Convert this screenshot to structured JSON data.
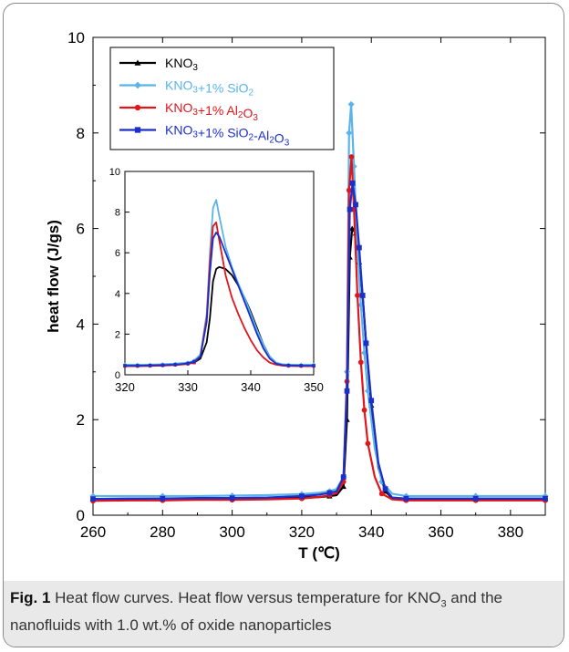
{
  "caption": {
    "label": "Fig. 1",
    "title": "Heat flow curves.",
    "text_part1": "Heat flow versus temperature for KNO",
    "text_sub": "3",
    "text_part2": "and the nanofluids with 1.0 wt.% of oxide nanoparticles"
  },
  "chart_data": {
    "type": "line",
    "xlabel": "T (℃)",
    "ylabel": "heat flow (J/gs)",
    "xlim": [
      260,
      390
    ],
    "ylim": [
      0,
      10
    ],
    "xticks": [
      260,
      280,
      300,
      320,
      340,
      360,
      380
    ],
    "yticks": [
      0,
      2,
      4,
      6,
      8,
      10
    ],
    "grid": false,
    "legend_position": "top-left",
    "series": [
      {
        "name": "KNO3",
        "legend_base": "KNO",
        "legend_sub": "3",
        "legend_rest": "",
        "color": "#000000",
        "marker": "triangle",
        "x": [
          260,
          270,
          280,
          290,
          300,
          310,
          320,
          325,
          328,
          330,
          332,
          333,
          333.8,
          334.5,
          335.5,
          336.5,
          337.5,
          338.5,
          340,
          342,
          344,
          346,
          350,
          360,
          370,
          380,
          390
        ],
        "y": [
          0.34,
          0.34,
          0.35,
          0.35,
          0.35,
          0.36,
          0.37,
          0.38,
          0.4,
          0.42,
          0.6,
          2.0,
          5.4,
          6.0,
          5.9,
          5.3,
          4.6,
          3.6,
          2.3,
          1.0,
          0.5,
          0.36,
          0.34,
          0.34,
          0.34,
          0.34,
          0.34
        ]
      },
      {
        "name": "KNO3+1% SiO2",
        "legend_base": "KNO",
        "legend_sub": "3",
        "legend_rest": "+1% SiO",
        "legend_sub2": "2",
        "legend_rest2": "",
        "color": "#5ab4ea",
        "marker": "diamond",
        "x": [
          260,
          270,
          280,
          290,
          300,
          310,
          320,
          325,
          328,
          330,
          332,
          333,
          333.6,
          334.2,
          335,
          336,
          337,
          338,
          339,
          341,
          343,
          346,
          350,
          360,
          370,
          380,
          390
        ],
        "y": [
          0.4,
          0.4,
          0.4,
          0.4,
          0.41,
          0.42,
          0.44,
          0.47,
          0.5,
          0.55,
          0.8,
          3.0,
          8.0,
          8.6,
          7.3,
          5.6,
          4.4,
          3.4,
          2.6,
          1.4,
          0.7,
          0.45,
          0.4,
          0.4,
          0.4,
          0.4,
          0.4
        ]
      },
      {
        "name": "KNO3+1% Al2O3",
        "legend_base": "KNO",
        "legend_sub": "3",
        "legend_rest": "+1% Al",
        "legend_sub2": "2",
        "legend_rest2": "O",
        "legend_sub3": "3",
        "color": "#e0161b",
        "marker": "circle",
        "x": [
          260,
          270,
          280,
          290,
          300,
          310,
          320,
          325,
          328,
          330,
          332,
          333,
          333.6,
          334.3,
          335,
          336,
          337,
          338,
          339,
          341,
          343,
          346,
          350,
          360,
          370,
          380,
          390
        ],
        "y": [
          0.3,
          0.31,
          0.31,
          0.32,
          0.32,
          0.33,
          0.35,
          0.38,
          0.42,
          0.46,
          0.7,
          2.8,
          6.8,
          7.5,
          6.4,
          4.6,
          3.2,
          2.2,
          1.5,
          0.8,
          0.45,
          0.33,
          0.31,
          0.31,
          0.31,
          0.31,
          0.31
        ]
      },
      {
        "name": "KNO3+1% SiO2-Al2O3",
        "legend_base": "KNO",
        "legend_sub": "3",
        "legend_rest": "+1% SiO",
        "legend_sub2": "2",
        "legend_rest2": "-Al",
        "legend_sub3": "2",
        "legend_rest3": "O",
        "legend_sub4": "3",
        "color": "#1c2fc8",
        "marker": "square",
        "x": [
          260,
          270,
          280,
          290,
          300,
          310,
          320,
          325,
          328,
          330,
          332,
          333,
          333.8,
          334.6,
          335.5,
          336.5,
          337.5,
          338.5,
          340,
          342,
          344,
          346,
          350,
          360,
          370,
          380,
          390
        ],
        "y": [
          0.34,
          0.35,
          0.35,
          0.36,
          0.36,
          0.37,
          0.4,
          0.43,
          0.47,
          0.5,
          0.8,
          2.6,
          6.4,
          6.95,
          6.5,
          5.6,
          4.6,
          3.6,
          2.4,
          1.1,
          0.55,
          0.37,
          0.35,
          0.35,
          0.35,
          0.35,
          0.35
        ]
      }
    ],
    "inset": {
      "xlim": [
        320,
        350
      ],
      "ylim": [
        0,
        10
      ],
      "xticks": [
        320,
        330,
        340,
        350
      ],
      "yticks": [
        0,
        2,
        4,
        6,
        8,
        10
      ],
      "series": [
        {
          "name": "KNO3",
          "color": "#000000",
          "x": [
            320,
            322,
            324,
            326,
            328,
            330,
            331,
            332,
            333,
            333.5,
            334,
            334.5,
            335,
            336,
            337,
            338,
            339,
            340,
            341,
            342,
            343,
            344,
            345,
            346,
            348,
            350
          ],
          "y": [
            0.45,
            0.45,
            0.46,
            0.47,
            0.5,
            0.55,
            0.6,
            0.8,
            1.6,
            2.8,
            4.6,
            5.2,
            5.3,
            5.2,
            4.9,
            4.4,
            3.8,
            3.1,
            2.3,
            1.5,
            0.9,
            0.6,
            0.5,
            0.47,
            0.45,
            0.45
          ]
        },
        {
          "name": "KNO3+1% SiO2",
          "color": "#5ab4ea",
          "x": [
            320,
            322,
            324,
            326,
            328,
            330,
            331,
            332,
            333,
            333.5,
            334,
            334.5,
            335,
            336,
            337,
            338,
            339,
            340,
            341,
            342,
            343,
            344,
            345,
            346,
            348,
            350
          ],
          "y": [
            0.5,
            0.5,
            0.5,
            0.52,
            0.55,
            0.6,
            0.7,
            1.0,
            3.0,
            6.0,
            8.2,
            8.6,
            7.8,
            6.3,
            5.3,
            4.5,
            3.8,
            3.0,
            2.2,
            1.5,
            0.9,
            0.6,
            0.52,
            0.5,
            0.5,
            0.5
          ]
        },
        {
          "name": "KNO3+1% Al2O3",
          "color": "#e0161b",
          "x": [
            320,
            322,
            324,
            326,
            328,
            330,
            331,
            332,
            333,
            333.5,
            334,
            334.5,
            335,
            336,
            337,
            338,
            339,
            340,
            341,
            342,
            343,
            344,
            345,
            346,
            348,
            350
          ],
          "y": [
            0.42,
            0.42,
            0.43,
            0.45,
            0.48,
            0.53,
            0.6,
            0.9,
            2.8,
            5.5,
            7.3,
            7.5,
            6.6,
            4.9,
            3.8,
            3.0,
            2.3,
            1.7,
            1.2,
            0.85,
            0.6,
            0.5,
            0.45,
            0.43,
            0.42,
            0.42
          ]
        },
        {
          "name": "KNO3+1% SiO2-Al2O3",
          "color": "#1c2fc8",
          "x": [
            320,
            322,
            324,
            326,
            328,
            330,
            331,
            332,
            333,
            333.5,
            334,
            334.5,
            335,
            336,
            337,
            338,
            339,
            340,
            341,
            342,
            343,
            344,
            345,
            346,
            348,
            350
          ],
          "y": [
            0.45,
            0.45,
            0.46,
            0.48,
            0.5,
            0.56,
            0.65,
            0.9,
            2.6,
            5.0,
            6.7,
            7.0,
            6.8,
            6.0,
            5.2,
            4.4,
            3.6,
            2.8,
            2.0,
            1.3,
            0.8,
            0.55,
            0.48,
            0.46,
            0.45,
            0.45
          ]
        }
      ]
    }
  }
}
